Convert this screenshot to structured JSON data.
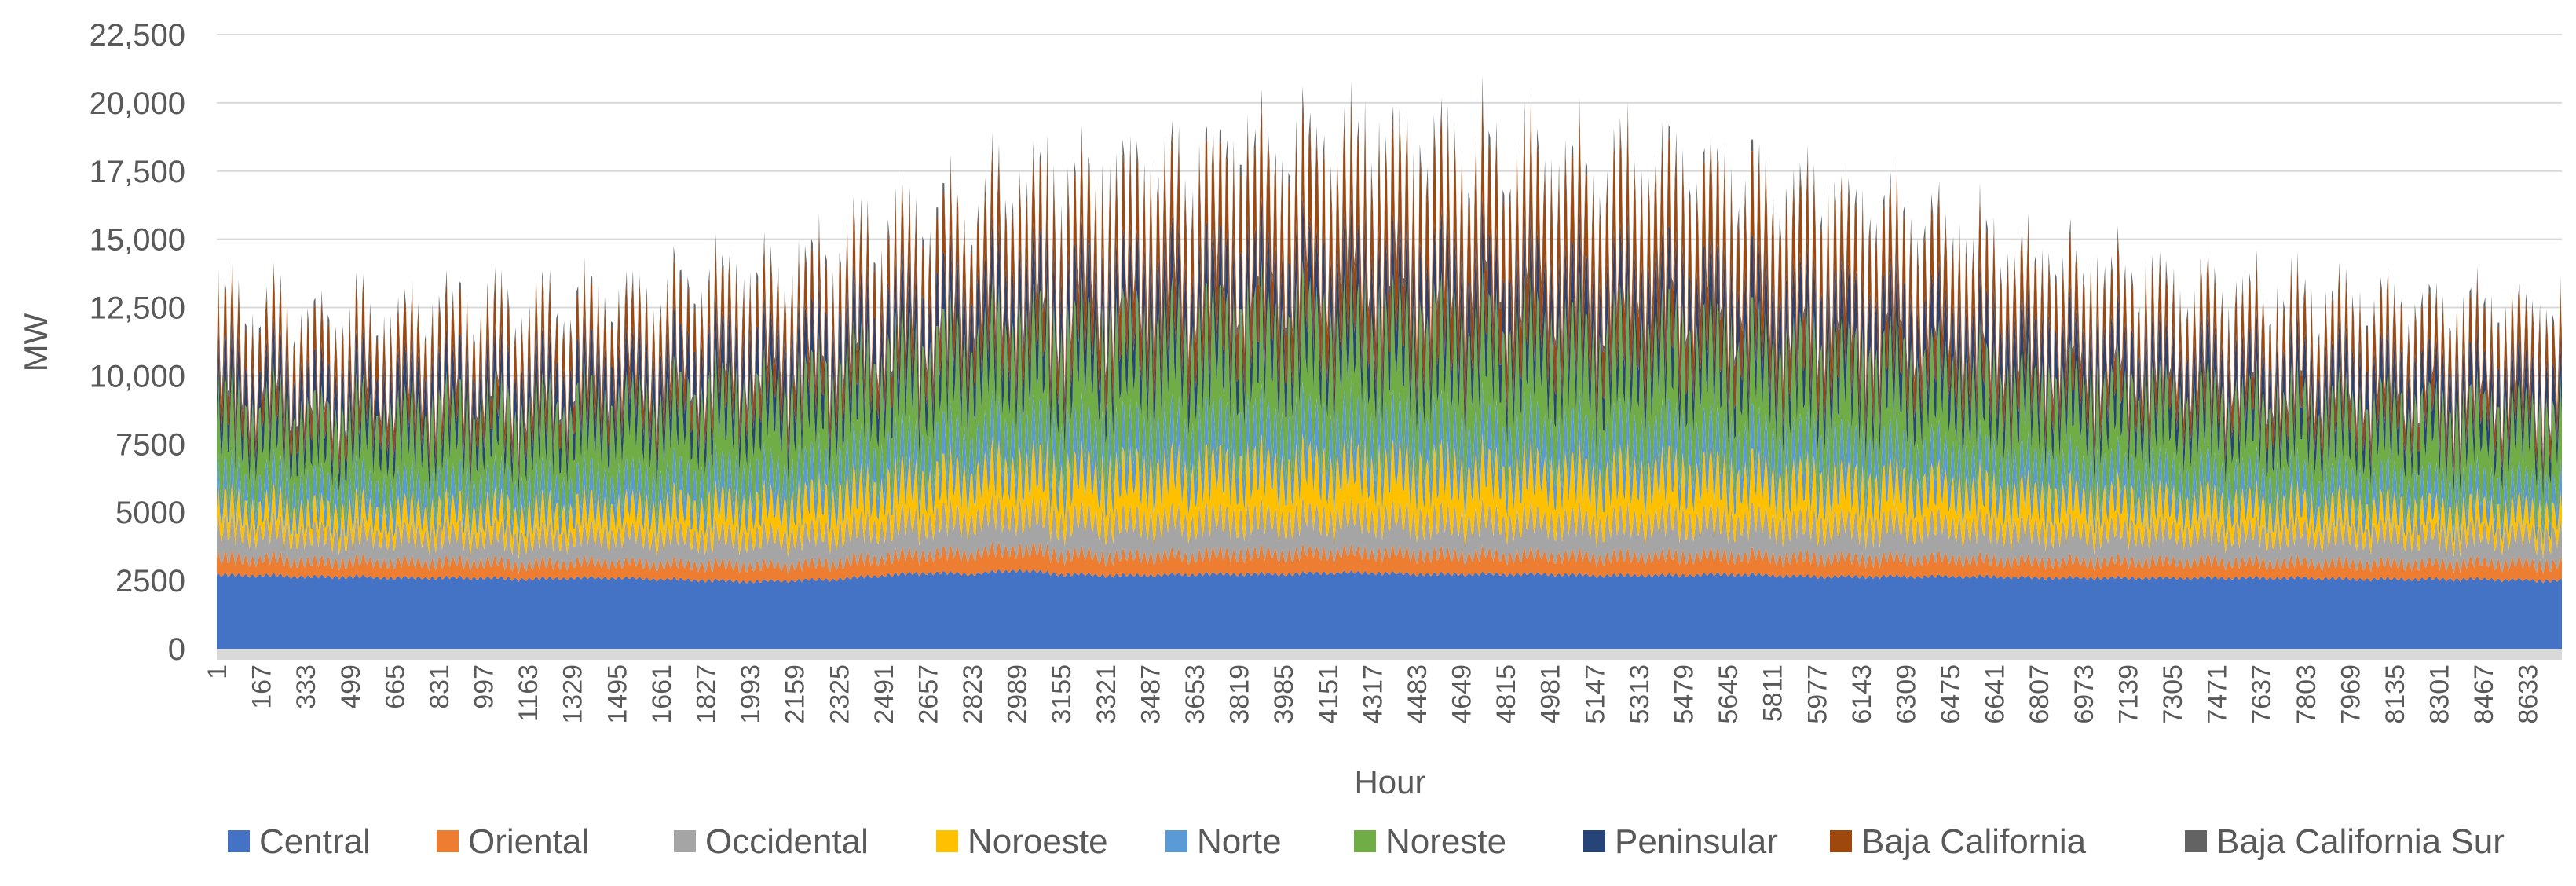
{
  "chart_data": {
    "type": "area",
    "subtype": "stacked",
    "xlabel": "Hour",
    "ylabel": "MW",
    "ylim": [
      0,
      22500
    ],
    "y_ticks": [
      0,
      2500,
      5000,
      7500,
      10000,
      12500,
      15000,
      17500,
      20000,
      22500
    ],
    "y_tick_labels": [
      "0",
      "2500",
      "5000",
      "7500",
      "10,000",
      "12,500",
      "15,000",
      "17,500",
      "20,000",
      "22,500"
    ],
    "x_tick_labels": [
      "1",
      "167",
      "333",
      "499",
      "665",
      "831",
      "997",
      "1163",
      "1329",
      "1495",
      "1661",
      "1827",
      "1993",
      "2159",
      "2325",
      "2491",
      "2657",
      "2823",
      "2989",
      "3155",
      "3321",
      "3487",
      "3653",
      "3819",
      "3985",
      "4151",
      "4317",
      "4483",
      "4649",
      "4815",
      "4981",
      "5147",
      "5313",
      "5479",
      "5645",
      "5811",
      "5977",
      "6143",
      "6309",
      "6475",
      "6641",
      "6807",
      "6973",
      "7139",
      "7305",
      "7471",
      "7637",
      "7803",
      "7969",
      "8135",
      "8301",
      "8467",
      "8633"
    ],
    "grid": true,
    "legend_position": "bottom",
    "x": [
      1,
      167,
      333,
      499,
      665,
      831,
      997,
      1163,
      1329,
      1495,
      1661,
      1827,
      1993,
      2159,
      2325,
      2491,
      2657,
      2823,
      2989,
      3155,
      3321,
      3487,
      3653,
      3819,
      3985,
      4151,
      4317,
      4483,
      4649,
      4815,
      4981,
      5147,
      5313,
      5479,
      5645,
      5811,
      5977,
      6143,
      6309,
      6475,
      6641,
      6807,
      6973,
      7139,
      7305,
      7471,
      7637,
      7803,
      7969,
      8135,
      8301,
      8467,
      8633
    ],
    "series": [
      {
        "name": "Central",
        "color": "#4472C4",
        "values": [
          2900,
          2900,
          2850,
          2850,
          2800,
          2800,
          2800,
          2750,
          2800,
          2800,
          2750,
          2700,
          2650,
          2700,
          2750,
          2900,
          3000,
          2950,
          3100,
          2950,
          2900,
          2900,
          2950,
          2950,
          2950,
          3000,
          3000,
          2950,
          2950,
          2950,
          2950,
          2900,
          2900,
          2900,
          2950,
          2900,
          2850,
          2850,
          2850,
          2850,
          2850,
          2800,
          2800,
          2800,
          2800,
          2800,
          2800,
          2800,
          2750,
          2750,
          2750,
          2750,
          2700
        ]
      },
      {
        "name": "Oriental",
        "color": "#ED7D31",
        "values": [
          700,
          700,
          650,
          650,
          650,
          650,
          650,
          600,
          650,
          650,
          650,
          650,
          650,
          650,
          700,
          750,
          800,
          850,
          900,
          850,
          800,
          800,
          800,
          850,
          850,
          850,
          850,
          850,
          800,
          800,
          800,
          800,
          800,
          800,
          800,
          800,
          800,
          750,
          750,
          750,
          700,
          700,
          700,
          700,
          700,
          700,
          650,
          650,
          650,
          650,
          650,
          700,
          700
        ]
      },
      {
        "name": "Occidental",
        "color": "#A5A5A5",
        "values": [
          1200,
          1200,
          1150,
          1150,
          1150,
          1150,
          1150,
          1100,
          1150,
          1200,
          1200,
          1200,
          1200,
          1250,
          1300,
          1350,
          1400,
          1450,
          1500,
          1450,
          1450,
          1450,
          1450,
          1450,
          1450,
          1450,
          1500,
          1450,
          1450,
          1450,
          1450,
          1450,
          1450,
          1450,
          1450,
          1450,
          1400,
          1400,
          1400,
          1350,
          1350,
          1300,
          1300,
          1300,
          1300,
          1250,
          1250,
          1250,
          1250,
          1250,
          1200,
          1200,
          1200
        ]
      },
      {
        "name": "Noroeste",
        "color": "#FFC000",
        "values": [
          900,
          900,
          900,
          900,
          900,
          950,
          950,
          950,
          1000,
          1050,
          1100,
          1150,
          1200,
          1300,
          1400,
          1500,
          1600,
          1700,
          1800,
          1800,
          1850,
          1900,
          1950,
          2000,
          2000,
          2000,
          2000,
          2000,
          1950,
          1950,
          1950,
          1900,
          1900,
          1850,
          1800,
          1750,
          1700,
          1600,
          1550,
          1500,
          1400,
          1350,
          1250,
          1200,
          1150,
          1100,
          1050,
          1000,
          950,
          950,
          900,
          900,
          900
        ]
      },
      {
        "name": "Norte",
        "color": "#5B9BD5",
        "values": [
          1000,
          1000,
          1000,
          1000,
          1000,
          1000,
          1000,
          1000,
          1050,
          1100,
          1100,
          1150,
          1150,
          1200,
          1250,
          1300,
          1350,
          1400,
          1450,
          1500,
          1500,
          1550,
          1550,
          1600,
          1600,
          1600,
          1600,
          1600,
          1550,
          1550,
          1550,
          1550,
          1500,
          1500,
          1450,
          1450,
          1400,
          1350,
          1300,
          1250,
          1200,
          1200,
          1150,
          1100,
          1100,
          1050,
          1050,
          1000,
          1000,
          1000,
          1000,
          1000,
          1000
        ]
      },
      {
        "name": "Noreste",
        "color": "#70AD47",
        "values": [
          2600,
          2600,
          2550,
          2550,
          2550,
          2600,
          2600,
          2600,
          2700,
          2800,
          2850,
          2900,
          2950,
          3050,
          3150,
          3250,
          3350,
          3450,
          3550,
          3600,
          3650,
          3700,
          3750,
          3800,
          3800,
          3800,
          3800,
          3750,
          3750,
          3700,
          3700,
          3650,
          3600,
          3550,
          3500,
          3450,
          3350,
          3300,
          3200,
          3100,
          3000,
          2950,
          2900,
          2850,
          2800,
          2750,
          2700,
          2700,
          2650,
          2650,
          2650,
          2650,
          2650
        ]
      },
      {
        "name": "Peninsular",
        "color": "#264478",
        "values": [
          1400,
          1400,
          1400,
          1400,
          1400,
          1450,
          1450,
          1450,
          1500,
          1550,
          1600,
          1650,
          1650,
          1700,
          1750,
          1800,
          1850,
          1900,
          1950,
          1950,
          2000,
          2000,
          2000,
          2050,
          2050,
          2050,
          2050,
          2050,
          2050,
          2050,
          2050,
          2050,
          2050,
          2000,
          2000,
          2000,
          1950,
          1950,
          1900,
          1850,
          1800,
          1750,
          1700,
          1650,
          1600,
          1550,
          1550,
          1500,
          1500,
          1450,
          1450,
          1450,
          1400
        ]
      },
      {
        "name": "Baja California",
        "color": "#9E480E",
        "values": [
          1500,
          1450,
          1450,
          1450,
          1450,
          1450,
          1450,
          1450,
          1500,
          1500,
          1500,
          1550,
          1550,
          1600,
          1700,
          1800,
          1900,
          2050,
          2200,
          2300,
          2400,
          2550,
          2700,
          2850,
          2950,
          3000,
          3050,
          3050,
          3050,
          3050,
          3000,
          2950,
          2900,
          2850,
          2800,
          2700,
          2550,
          2400,
          2250,
          2100,
          1950,
          1850,
          1750,
          1650,
          1600,
          1550,
          1550,
          1500,
          1500,
          1500,
          1500,
          1500,
          1500
        ]
      },
      {
        "name": "Baja California Sur",
        "color": "#636363",
        "values": [
          250,
          250,
          250,
          250,
          250,
          250,
          250,
          250,
          260,
          270,
          280,
          290,
          300,
          310,
          320,
          330,
          340,
          350,
          360,
          370,
          380,
          390,
          400,
          410,
          410,
          420,
          420,
          420,
          420,
          420,
          410,
          410,
          400,
          400,
          390,
          380,
          370,
          360,
          350,
          340,
          330,
          310,
          300,
          290,
          280,
          270,
          260,
          260,
          260,
          250,
          250,
          250,
          250
        ]
      }
    ]
  }
}
